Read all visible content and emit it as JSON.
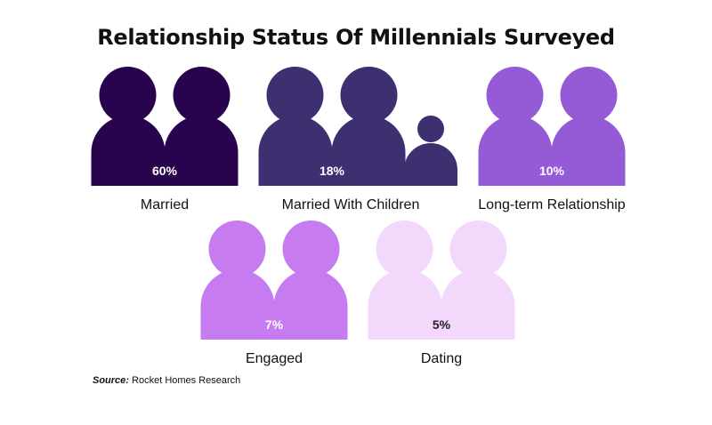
{
  "title": "Relationship Status Of Millennials Surveyed",
  "source": {
    "label": "Source:",
    "text": "Rocket Homes Research"
  },
  "chart_data": {
    "type": "pictograph",
    "title": "Relationship Status Of Millennials Surveyed",
    "unit": "%",
    "categories": [
      "Married",
      "Married With Children",
      "Long-term Relationship",
      "Engaged",
      "Dating"
    ],
    "values": [
      60,
      18,
      10,
      7,
      5
    ],
    "value_labels": [
      "60%",
      "18%",
      "10%",
      "7%",
      "5%"
    ],
    "colors": [
      "#28034e",
      "#3d2f70",
      "#955ad6",
      "#c67cf0",
      "#f2d9fb"
    ],
    "label_colors": [
      "#ffffff",
      "#ffffff",
      "#ffffff",
      "#ffffff",
      "#222222"
    ],
    "children_icon": [
      false,
      true,
      false,
      false,
      false
    ]
  }
}
